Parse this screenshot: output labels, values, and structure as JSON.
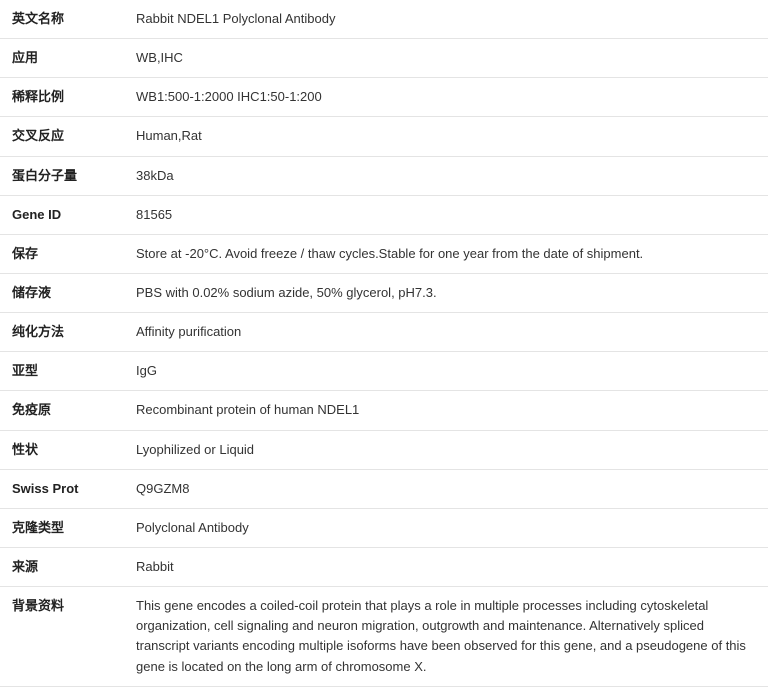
{
  "spec": {
    "rows": [
      {
        "label": "英文名称",
        "value": "Rabbit NDEL1 Polyclonal Antibody"
      },
      {
        "label": "应用",
        "value": "WB,IHC"
      },
      {
        "label": "稀释比例",
        "value": "WB1:500-1:2000 IHC1:50-1:200"
      },
      {
        "label": "交叉反应",
        "value": "Human,Rat"
      },
      {
        "label": "蛋白分子量",
        "value": "38kDa"
      },
      {
        "label": "Gene ID",
        "value": "81565"
      },
      {
        "label": "保存",
        "value": "Store at -20°C. Avoid freeze / thaw cycles.Stable for one year from the date of shipment."
      },
      {
        "label": "储存液",
        "value": "PBS with 0.02% sodium azide, 50% glycerol, pH7.3."
      },
      {
        "label": "纯化方法",
        "value": "Affinity purification"
      },
      {
        "label": "亚型",
        "value": "IgG"
      },
      {
        "label": "免疫原",
        "value": "Recombinant protein of human NDEL1"
      },
      {
        "label": "性状",
        "value": "Lyophilized or Liquid"
      },
      {
        "label": "Swiss Prot",
        "value": "Q9GZM8"
      },
      {
        "label": "克隆类型",
        "value": "Polyclonal Antibody"
      },
      {
        "label": "来源",
        "value": "Rabbit"
      },
      {
        "label": "背景资料",
        "value": "This gene encodes a coiled-coil protein that plays a role in multiple processes including cytoskeletal organization, cell signaling and neuron migration, outgrowth and maintenance. Alternatively spliced transcript variants encoding multiple isoforms have been observed for this gene, and a pseudogene of this gene is located on the long arm of chromosome X."
      }
    ]
  },
  "style": {
    "border_color": "#e4e4e4",
    "label_fontsize": 13,
    "value_fontsize": 13,
    "label_weight": 700,
    "text_color": "#333333",
    "label_color": "#222222",
    "background": "#ffffff",
    "row_padding_v": 9,
    "label_width": 124
  }
}
